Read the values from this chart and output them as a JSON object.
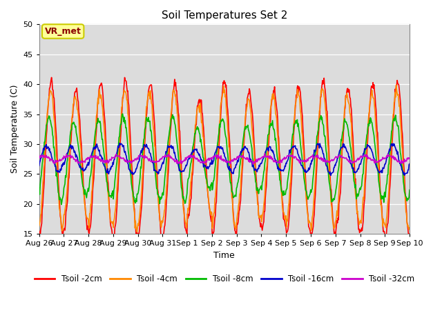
{
  "title": "Soil Temperatures Set 2",
  "xlabel": "Time",
  "ylabel": "Soil Temperature (C)",
  "ylim": [
    15,
    50
  ],
  "yticks": [
    15,
    20,
    25,
    30,
    35,
    40,
    45,
    50
  ],
  "background_color": "#dcdcdc",
  "annotation_text": "VR_met",
  "annotation_box_color": "#ffff99",
  "annotation_text_color": "#8b0000",
  "annotation_edge_color": "#cccc00",
  "series": [
    {
      "label": "Tsoil -2cm",
      "color": "#ff0000"
    },
    {
      "label": "Tsoil -4cm",
      "color": "#ff8800"
    },
    {
      "label": "Tsoil -8cm",
      "color": "#00bb00"
    },
    {
      "label": "Tsoil -16cm",
      "color": "#0000cc"
    },
    {
      "label": "Tsoil -32cm",
      "color": "#cc00cc"
    }
  ],
  "x_tick_labels": [
    "Aug 26",
    "Aug 27",
    "Aug 28",
    "Aug 29",
    "Aug 30",
    "Aug 31",
    "Sep 1",
    "Sep 2",
    "Sep 3",
    "Sep 4",
    "Sep 5",
    "Sep 6",
    "Sep 7",
    "Sep 8",
    "Sep 9",
    "Sep 10"
  ],
  "n_days": 15,
  "points_per_day": 48,
  "base_mean": 27.5,
  "amp2": 12.0,
  "amp4": 10.5,
  "amp8": 6.5,
  "amp16": 2.2,
  "amp32": 0.5,
  "phase2": -1.5707963,
  "phase4": -1.3707963,
  "phase8": -0.9707963,
  "phase16": -0.3707963,
  "phase32": 0.5,
  "linewidth": 1.2,
  "figwidth": 6.4,
  "figheight": 4.8,
  "dpi": 100
}
